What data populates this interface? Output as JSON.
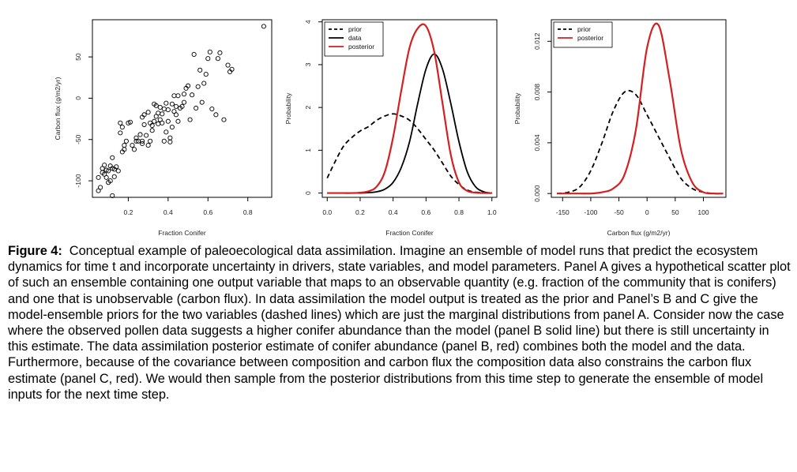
{
  "figure": {
    "panels": [
      {
        "id": "A",
        "xlabel": "Fraction Conifer",
        "ylabel": "Carbon flux (g/m2/yr)"
      },
      {
        "id": "B",
        "xlabel": "Fraction Conifer",
        "ylabel": "Probability",
        "legend": [
          "prior",
          "data",
          "posterior"
        ]
      },
      {
        "id": "C",
        "xlabel": "Carbon flux (g/m2/yr)",
        "ylabel": "Probability",
        "legend": [
          "prior",
          "posterior"
        ]
      }
    ]
  },
  "colors": {
    "prior": "#000000",
    "data": "#000000",
    "posterior": "#d42020",
    "axis": "#000000"
  },
  "chart_data": [
    {
      "type": "scatter",
      "xlabel": "Fraction Conifer",
      "ylabel": "Carbon flux (g/m2/yr)",
      "xlim": [
        0.02,
        0.92
      ],
      "ylim": [
        -120,
        95
      ],
      "xticks": [
        0.2,
        0.4,
        0.6,
        0.8
      ],
      "yticks": [
        -100,
        -50,
        0,
        50
      ],
      "x": [
        0.05,
        0.05,
        0.06,
        0.07,
        0.07,
        0.08,
        0.08,
        0.09,
        0.09,
        0.1,
        0.1,
        0.11,
        0.11,
        0.12,
        0.12,
        0.13,
        0.13,
        0.14,
        0.15,
        0.16,
        0.17,
        0.18,
        0.18,
        0.19,
        0.2,
        0.21,
        0.22,
        0.24,
        0.24,
        0.25,
        0.26,
        0.27,
        0.27,
        0.28,
        0.28,
        0.29,
        0.3,
        0.3,
        0.31,
        0.31,
        0.32,
        0.32,
        0.33,
        0.33,
        0.34,
        0.34,
        0.35,
        0.35,
        0.36,
        0.36,
        0.37,
        0.37,
        0.38,
        0.38,
        0.39,
        0.39,
        0.4,
        0.4,
        0.41,
        0.41,
        0.42,
        0.42,
        0.43,
        0.43,
        0.44,
        0.44,
        0.45,
        0.45,
        0.46,
        0.47,
        0.48,
        0.48,
        0.49,
        0.5,
        0.51,
        0.52,
        0.53,
        0.54,
        0.55,
        0.56,
        0.57,
        0.58,
        0.59,
        0.6,
        0.61,
        0.62,
        0.64,
        0.65,
        0.66,
        0.68,
        0.7,
        0.71,
        0.72,
        0.88,
        0.16,
        0.17,
        0.12,
        0.27,
        0.23
      ],
      "y": [
        -112,
        -96,
        -108,
        -90,
        -85,
        -92,
        -81,
        -96,
        -87,
        -88,
        -102,
        -82,
        -100,
        -72,
        -85,
        -95,
        -86,
        -83,
        -88,
        -30,
        -65,
        -57,
        -62,
        -52,
        -30,
        -29,
        -57,
        -48,
        -52,
        -52,
        -44,
        -23,
        -52,
        -32,
        -20,
        -45,
        -17,
        -57,
        -30,
        -52,
        -33,
        -39,
        -28,
        -7,
        -22,
        -9,
        -31,
        -18,
        -26,
        -11,
        -30,
        -19,
        -52,
        -13,
        -41,
        -6,
        -28,
        -14,
        -53,
        -48,
        -35,
        -7,
        -16,
        3,
        -20,
        -10,
        -28,
        3,
        -12,
        -10,
        5,
        -5,
        12,
        15,
        -26,
        4,
        53,
        -12,
        14,
        34,
        -5,
        18,
        29,
        48,
        56,
        -13,
        -20,
        48,
        55,
        -26,
        40,
        32,
        35,
        87,
        -42,
        -35,
        -118,
        -55,
        -62
      ]
    },
    {
      "type": "line",
      "xlabel": "Fraction Conifer",
      "ylabel": "Probability",
      "xlim": [
        -0.03,
        1.03
      ],
      "ylim": [
        -0.1,
        4.05
      ],
      "xticks": [
        0.0,
        0.2,
        0.4,
        0.6,
        0.8,
        1.0
      ],
      "yticks": [
        0,
        1,
        2,
        3,
        4
      ],
      "x": [
        0.0,
        0.05,
        0.1,
        0.15,
        0.2,
        0.25,
        0.3,
        0.35,
        0.4,
        0.45,
        0.5,
        0.55,
        0.6,
        0.65,
        0.7,
        0.75,
        0.8,
        0.85,
        0.9,
        0.95,
        1.0
      ],
      "series": [
        {
          "name": "prior",
          "style": "dashed",
          "values": [
            0.35,
            0.75,
            1.1,
            1.3,
            1.45,
            1.55,
            1.7,
            1.8,
            1.85,
            1.8,
            1.7,
            1.5,
            1.25,
            1.0,
            0.7,
            0.4,
            0.2,
            0.07,
            0.02,
            0.01,
            0.0
          ]
        },
        {
          "name": "data",
          "style": "solid",
          "values": [
            0.0,
            0.0,
            0.0,
            0.0,
            0.0,
            0.01,
            0.03,
            0.09,
            0.25,
            0.6,
            1.2,
            2.1,
            2.9,
            3.25,
            2.9,
            2.1,
            1.2,
            0.5,
            0.15,
            0.03,
            0.0
          ]
        },
        {
          "name": "posterior",
          "style": "solid",
          "values": [
            0.0,
            0.0,
            0.0,
            0.0,
            0.01,
            0.04,
            0.15,
            0.5,
            1.3,
            2.4,
            3.4,
            3.85,
            3.9,
            3.3,
            2.1,
            0.9,
            0.25,
            0.05,
            0.01,
            0.0,
            0.0
          ]
        }
      ]
    },
    {
      "type": "line",
      "xlabel": "Carbon flux (g/m2/yr)",
      "ylabel": "Probability",
      "xlim": [
        -170,
        140
      ],
      "ylim": [
        -0.0003,
        0.0137
      ],
      "xticks": [
        -150,
        -100,
        -50,
        0,
        50,
        100
      ],
      "yticks": [
        0.0,
        0.004,
        0.008,
        0.012
      ],
      "x": [
        -160,
        -140,
        -120,
        -100,
        -80,
        -60,
        -40,
        -20,
        0,
        20,
        40,
        60,
        80,
        100,
        120,
        135
      ],
      "series": [
        {
          "name": "prior",
          "style": "dashed",
          "values": [
            0.0,
            0.0001,
            0.0005,
            0.0018,
            0.004,
            0.0065,
            0.008,
            0.0078,
            0.0062,
            0.0045,
            0.0028,
            0.0012,
            0.0004,
            0.0001,
            0.0,
            0.0
          ]
        },
        {
          "name": "posterior",
          "style": "solid",
          "values": [
            0.0,
            0.0,
            0.0,
            0.0,
            0.0001,
            0.0004,
            0.0015,
            0.005,
            0.0115,
            0.0133,
            0.009,
            0.0035,
            0.0009,
            0.0001,
            0.0,
            0.0
          ]
        }
      ]
    }
  ],
  "caption": {
    "label": "Figure 4:",
    "text": "Conceptual example of paleoecological data assimilation.  Imagine an ensemble of model runs that predict the ecosystem dynamics for time t and incorporate uncertainty in drivers, state variables, and model parameters.  Panel A gives a hypothetical scatter plot of such an ensemble containing one output variable that maps to an observable quantity (e.g. fraction of the community that is conifers) and one that is unobservable (carbon flux).  In data assimilation the model output is treated as the prior and Panel’s B and C give the model-ensemble priors for the two variables (dashed lines) which are just the marginal distributions from panel A.  Consider now the case where the observed pollen data suggests a higher conifer abundance than the model (panel B solid line) but there is still uncertainty in this estimate.  The data assimilation posterior estimate of conifer abundance (panel B, red) combines both the model and the data.  Furthermore, because of the covariance between composition and carbon flux the composition data also constrains the carbon flux estimate (panel C, red).  We would then sample from the posterior distributions from this time step to generate the ensemble of model inputs for the next time step."
  }
}
